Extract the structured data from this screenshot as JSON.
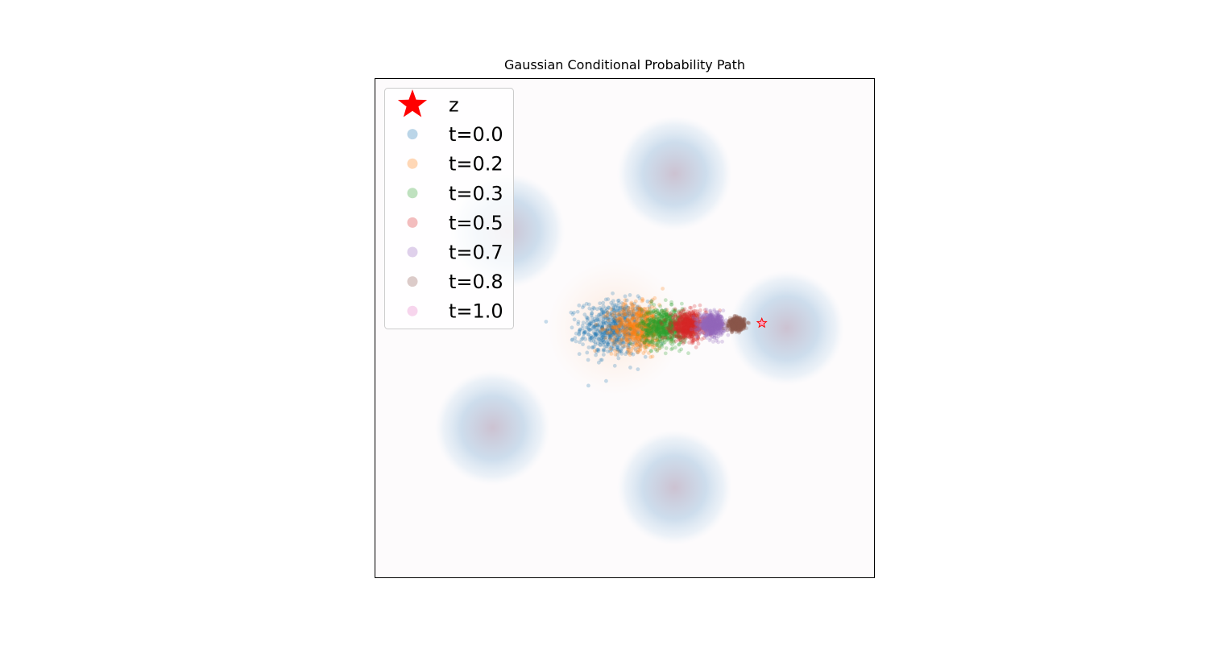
{
  "chart_data": {
    "type": "scatter",
    "title": "Gaussian Conditional Probability Path",
    "xlabel": "",
    "ylabel": "",
    "xlim": [
      -5,
      5
    ],
    "ylim": [
      -5,
      5
    ],
    "axes_ticks_visible": false,
    "grid": false,
    "legend_placement": "top-left",
    "background": {
      "type": "gaussian-mixture-density",
      "colormap": "Blues",
      "components": [
        {
          "mx": 1.0,
          "my": 3.1,
          "sigma": 0.55
        },
        {
          "mx": -2.35,
          "my": 1.95,
          "sigma": 0.55
        },
        {
          "mx": 3.25,
          "my": 0.0,
          "sigma": 0.55
        },
        {
          "mx": -2.65,
          "my": -2.0,
          "sigma": 0.55
        },
        {
          "mx": 1.0,
          "my": -3.2,
          "sigma": 0.55
        }
      ]
    },
    "target": {
      "label": "z",
      "x": 2.75,
      "y": 0.1,
      "color": "#ff0000",
      "marker": "star"
    },
    "series": [
      {
        "name": "t=0.0",
        "t": 0.0,
        "color": "#1f77b4",
        "mean_x": -0.2,
        "mean_y": 0.0,
        "sigma": 0.55,
        "n": 700,
        "alpha": 0.25
      },
      {
        "name": "t=0.2",
        "t": 0.17,
        "color": "#ff7f0e",
        "mean_x": 0.3,
        "mean_y": 0.02,
        "sigma": 0.45,
        "n": 700,
        "alpha": 0.25
      },
      {
        "name": "t=0.3",
        "t": 0.33,
        "color": "#2ca02c",
        "mean_x": 0.8,
        "mean_y": 0.03,
        "sigma": 0.37,
        "n": 700,
        "alpha": 0.25
      },
      {
        "name": "t=0.5",
        "t": 0.5,
        "color": "#d62728",
        "mean_x": 1.28,
        "mean_y": 0.05,
        "sigma": 0.28,
        "n": 700,
        "alpha": 0.25
      },
      {
        "name": "t=0.7",
        "t": 0.67,
        "color": "#9467bd",
        "mean_x": 1.75,
        "mean_y": 0.07,
        "sigma": 0.2,
        "n": 700,
        "alpha": 0.25
      },
      {
        "name": "t=0.8",
        "t": 0.83,
        "color": "#8c564b",
        "mean_x": 2.25,
        "mean_y": 0.08,
        "sigma": 0.12,
        "n": 700,
        "alpha": 0.25
      },
      {
        "name": "t=1.0",
        "t": 1.0,
        "color": "#e377c2",
        "mean_x": 2.75,
        "mean_y": 0.1,
        "sigma": 0.0,
        "n": 700,
        "alpha": 0.25
      }
    ]
  }
}
